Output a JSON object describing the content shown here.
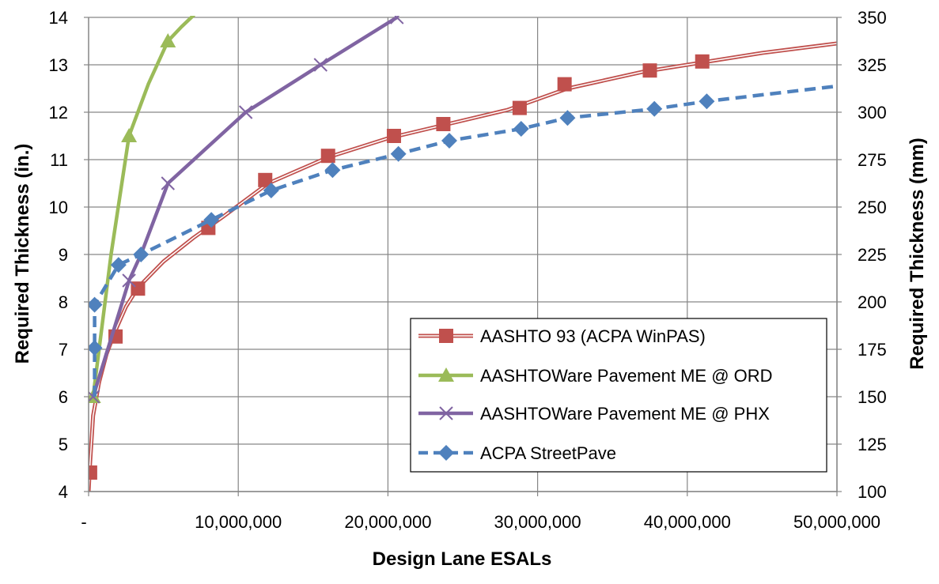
{
  "chart_data": {
    "type": "line",
    "xlabel": "Design Lane ESALs",
    "ylabel": "Required Thickness (in.)",
    "y2label": "Required Thickness (mm)",
    "xlim": [
      0,
      50000000
    ],
    "ylim": [
      4,
      14
    ],
    "y2lim": [
      100,
      350
    ],
    "xticks": [
      0,
      10000000,
      20000000,
      30000000,
      40000000,
      50000000
    ],
    "xtick_labels": [
      "-",
      "10,000,000",
      "20,000,000",
      "30,000,000",
      "40,000,000",
      "50,000,000"
    ],
    "yticks": [
      4,
      5,
      6,
      7,
      8,
      9,
      10,
      11,
      12,
      13,
      14
    ],
    "ytick_labels": [
      "4",
      "5",
      "6",
      "7",
      "8",
      "9",
      "10",
      "11",
      "12",
      "13",
      "14"
    ],
    "y2ticks": [
      100,
      125,
      150,
      175,
      200,
      225,
      250,
      275,
      300,
      325,
      350
    ],
    "y2tick_labels": [
      "100",
      "125",
      "150",
      "175",
      "200",
      "225",
      "250",
      "275",
      "300",
      "325",
      "350"
    ],
    "grid": true,
    "legend_position": "bottom-right",
    "series": [
      {
        "name": "AASHTO 93 (ACPA WinPAS)",
        "color": "#C0504D",
        "marker": "square",
        "line_style": "double",
        "trend_x": [
          0,
          100000,
          300000,
          700000,
          1200000,
          1800000,
          2500000,
          3300000,
          5000000,
          7000000,
          9000000,
          12000000,
          16000000,
          20000000,
          24000000,
          28000000,
          32000000,
          37000000,
          41000000,
          45000000,
          50000000
        ],
        "trend_y": [
          4.0,
          4.6,
          5.6,
          6.3,
          6.9,
          7.4,
          7.9,
          8.3,
          8.85,
          9.35,
          9.8,
          10.5,
          11.05,
          11.45,
          11.75,
          12.05,
          12.5,
          12.85,
          13.05,
          13.25,
          13.45
        ],
        "x": [
          100000,
          1800000,
          3300000,
          8000000,
          11800000,
          16000000,
          20400000,
          23700000,
          28800000,
          31800000,
          37500000,
          41000000
        ],
        "y": [
          4.4,
          7.27,
          8.28,
          9.56,
          10.57,
          11.08,
          11.5,
          11.75,
          12.09,
          12.59,
          12.88,
          13.07
        ]
      },
      {
        "name": "AASHTOWare Pavement ME @ ORD",
        "color": "#9BBB59",
        "marker": "triangle",
        "line_style": "solid",
        "trend_x": [
          300000,
          1500000,
          2700000,
          4000000,
          5300000,
          6200000,
          7200000
        ],
        "trend_y": [
          6.0,
          9.0,
          11.5,
          12.6,
          13.5,
          13.8,
          14.1
        ],
        "x": [
          300000,
          2700000,
          5300000
        ],
        "y": [
          6.0,
          11.5,
          13.5
        ]
      },
      {
        "name": "AASHTOWare Pavement ME @ PHX",
        "color": "#8064A2",
        "marker": "x",
        "line_style": "solid",
        "trend_x": [
          300000,
          2700000,
          3500000,
          5300000,
          10500000,
          15500000,
          20600000
        ],
        "trend_y": [
          6.0,
          8.45,
          9.0,
          10.5,
          12.0,
          13.0,
          14.0
        ],
        "x": [
          300000,
          2700000,
          5300000,
          10500000,
          15500000,
          20600000
        ],
        "y": [
          6.0,
          8.45,
          10.5,
          12.0,
          13.0,
          14.0
        ]
      },
      {
        "name": "ACPA StreetPave",
        "color": "#4F81BD",
        "marker": "diamond",
        "line_style": "dashed",
        "trend_x": [
          400000,
          400000,
          400000,
          2000000,
          3500000,
          8200000,
          12200000,
          16300000,
          20700000,
          24100000,
          28900000,
          32000000,
          37800000,
          41300000,
          50000000
        ],
        "trend_y": [
          6.0,
          7.03,
          7.94,
          8.78,
          9.0,
          9.73,
          10.35,
          10.78,
          11.12,
          11.4,
          11.65,
          11.88,
          12.07,
          12.23,
          12.55
        ],
        "x": [
          400000,
          400000,
          2000000,
          3500000,
          8200000,
          12200000,
          16300000,
          20700000,
          24100000,
          28900000,
          32000000,
          37800000,
          41300000
        ],
        "y": [
          7.03,
          7.94,
          8.78,
          9.0,
          9.73,
          10.35,
          10.78,
          11.12,
          11.4,
          11.65,
          11.88,
          12.07,
          12.23
        ]
      }
    ]
  }
}
